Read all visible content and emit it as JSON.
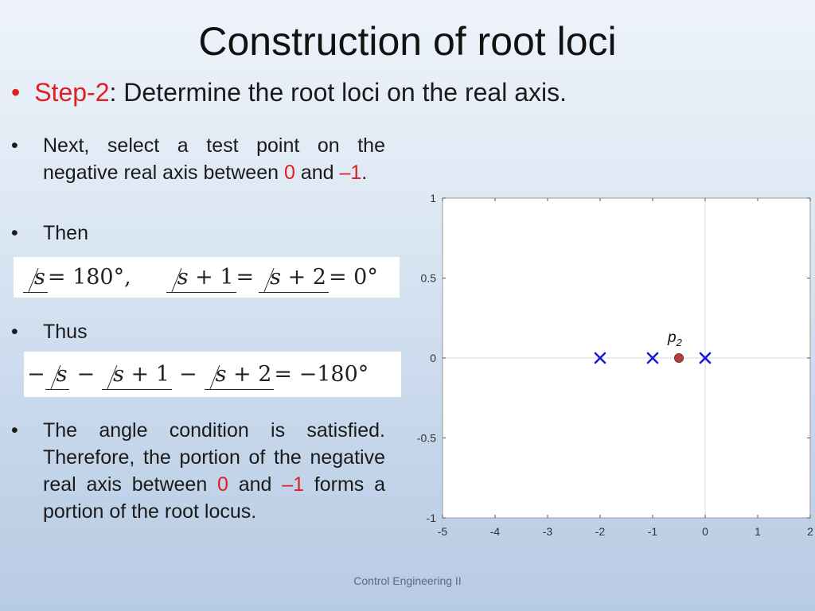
{
  "slide": {
    "title": "Construction of root loci",
    "step_label": "Step-2",
    "step_text": ": Determine the root loci on the real axis.",
    "bullet_symbol": "•",
    "footer": "Control Engineering II"
  },
  "bullets": {
    "b1_before": "Next, select a test point on the negative real axis between ",
    "b1_zero": "0",
    "b1_mid": " and ",
    "b1_minus_one": "–1",
    "b1_end": ".",
    "b2": "Then",
    "b3": "Thus",
    "b4_before": "The angle condition is satisfied. Therefore, the portion of the negative real axis between ",
    "b4_zero": "0",
    "b4_mid": " and ",
    "b4_minus_one": "–1",
    "b4_end": " forms a portion of the root locus."
  },
  "equations": {
    "eq1": {
      "a1": "s",
      "v1": " = 180°,",
      "a2": "s",
      "p2": " + 1",
      "v2": " = ",
      "a3": "s",
      "p3": " + 2",
      "v3": " = 0°"
    },
    "eq2": {
      "minus": "−",
      "a1": "s",
      "a2": "s",
      "p2": " + 1",
      "a3": "s",
      "p3": " + 2",
      "v": " = −180°"
    }
  },
  "chart_data": {
    "type": "scatter",
    "title": "",
    "xlabel": "",
    "ylabel": "",
    "xlim": [
      -5,
      2
    ],
    "ylim": [
      -1,
      1
    ],
    "x_ticks": [
      -5,
      -4,
      -3,
      -2,
      -1,
      0,
      1,
      2
    ],
    "y_ticks": [
      -1,
      -0.5,
      0,
      0.5,
      1
    ],
    "x_tick_labels": [
      "-5",
      "-4",
      "-3",
      "-2",
      "-1",
      "0",
      "1",
      "2"
    ],
    "y_tick_labels": [
      "-1",
      "-0.5",
      "0",
      "0.5",
      "1"
    ],
    "grid": false,
    "zero_lines": true,
    "poles": {
      "marker": "x",
      "color": "#1a1adc",
      "points": [
        {
          "x": -2,
          "y": 0
        },
        {
          "x": -1,
          "y": 0
        },
        {
          "x": 0,
          "y": 0
        }
      ]
    },
    "test_point": {
      "label": "p",
      "subscript": "2",
      "x": -0.5,
      "y": 0,
      "color": "#b5413a"
    }
  }
}
